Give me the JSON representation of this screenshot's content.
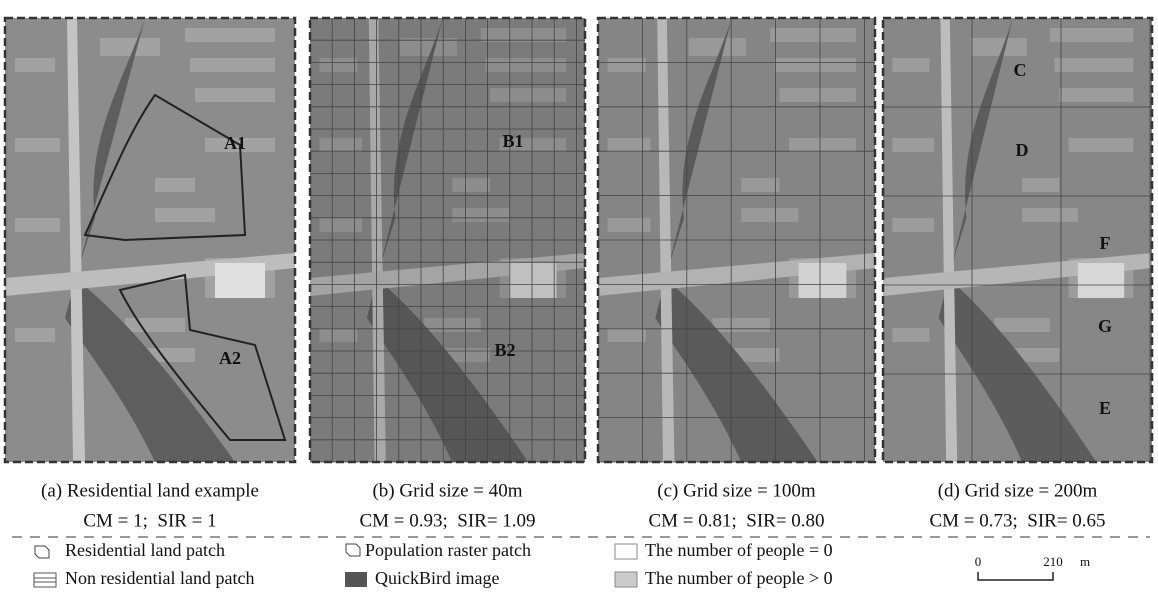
{
  "panels": [
    {
      "caption": "(a) Residential land example",
      "metrics": "CM = 1;  SIR = 1",
      "labels": [
        "A1",
        "A2"
      ]
    },
    {
      "caption": "(b) Grid size = 40m",
      "metrics": "CM = 0.93;  SIR= 1.09",
      "labels": [
        "B1",
        "B2"
      ]
    },
    {
      "caption": "(c) Grid size = 100m",
      "metrics": "CM = 0.81;  SIR= 0.80",
      "labels": []
    },
    {
      "caption": "(d) Grid size = 200m",
      "metrics": "CM = 0.73;  SIR= 0.65",
      "labels": [
        "C",
        "D",
        "F",
        "G",
        "E"
      ]
    }
  ],
  "legend": [
    "Residential land patch",
    "Non residential land patch",
    "Population raster patch",
    "QuickBird image",
    "The number of people = 0",
    "The number of people > 0"
  ],
  "scale_bar": {
    "start": "0",
    "end": "210",
    "unit": "m"
  }
}
